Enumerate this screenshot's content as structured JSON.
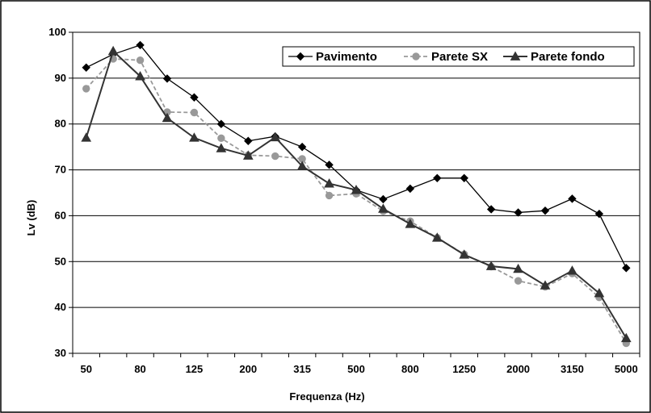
{
  "chart_data": {
    "type": "line",
    "xlabel": "Frequenza (Hz)",
    "ylabel": "Lv (dB)",
    "ylim": [
      30,
      100
    ],
    "yticks": [
      30,
      40,
      50,
      60,
      70,
      80,
      90,
      100
    ],
    "grid": "horizontal",
    "legend_position": "top-right",
    "x": [
      "50",
      "63",
      "80",
      "100",
      "125",
      "160",
      "200",
      "250",
      "315",
      "400",
      "500",
      "630",
      "800",
      "1000",
      "1250",
      "1600",
      "2000",
      "2500",
      "3150",
      "4000",
      "5000"
    ],
    "x_tick_labels": [
      "50",
      "80",
      "125",
      "200",
      "315",
      "500",
      "800",
      "1250",
      "2000",
      "3150",
      "5000"
    ],
    "series": [
      {
        "name": "Pavimento",
        "color": "#000000",
        "dash": "solid",
        "marker": "diamond",
        "values": [
          92.3,
          95.2,
          97.2,
          89.9,
          85.8,
          80.0,
          76.3,
          77.3,
          75.0,
          71.1,
          65.6,
          63.6,
          65.9,
          68.2,
          68.2,
          61.4,
          60.7,
          61.1,
          63.7,
          60.4,
          48.6
        ]
      },
      {
        "name": "Parete SX",
        "color": "#999999",
        "dash": "dashed",
        "marker": "circle",
        "values": [
          87.7,
          94.2,
          93.9,
          82.6,
          82.5,
          76.9,
          73.2,
          73.0,
          72.4,
          64.4,
          64.8,
          61.0,
          58.8,
          55.2,
          51.6,
          48.9,
          45.8,
          44.5,
          47.4,
          42.2,
          32.2
        ]
      },
      {
        "name": "Parete fondo",
        "color": "#333333",
        "dash": "solid",
        "marker": "triangle",
        "values": [
          77.0,
          95.9,
          90.4,
          81.3,
          77.0,
          74.7,
          73.1,
          77.1,
          70.8,
          67.0,
          65.6,
          61.5,
          58.2,
          55.2,
          51.5,
          49.0,
          48.4,
          44.8,
          48.0,
          43.1,
          33.3
        ]
      }
    ]
  }
}
